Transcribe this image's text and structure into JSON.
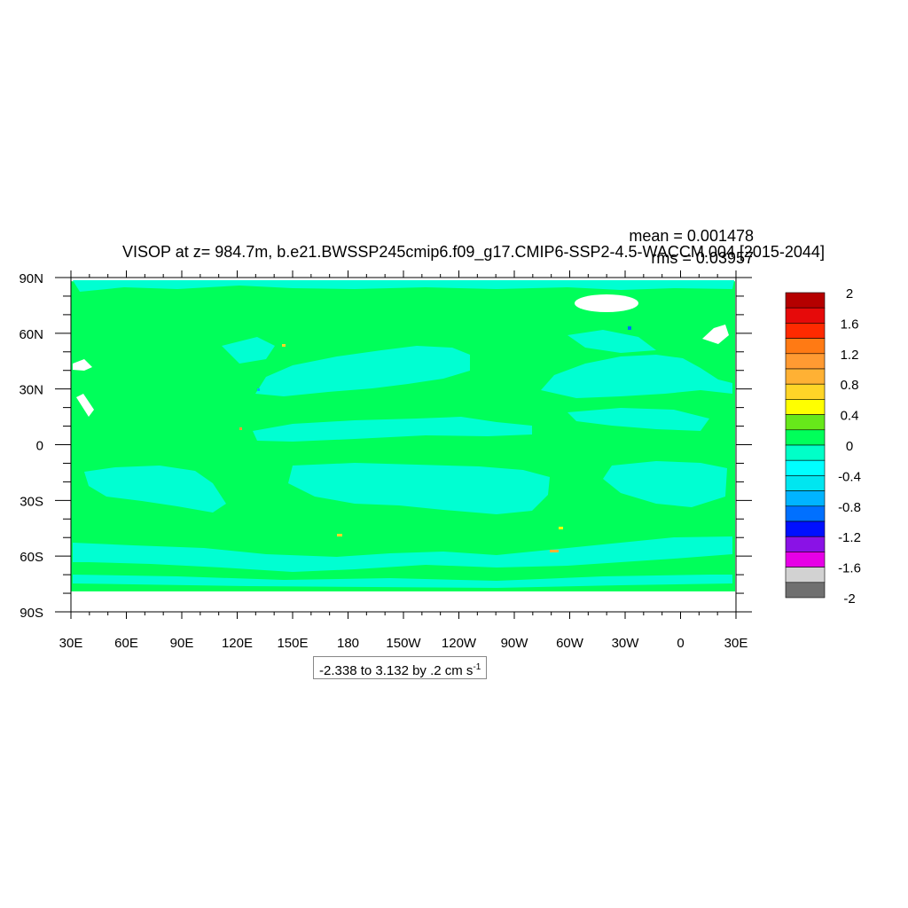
{
  "chart_data": {
    "type": "heatmap",
    "title": "VISOP at z= 984.7m, b.e21.BWSSP245cmip6.f09_g17.CMIP6-SSP2-4.5-WACCM.004 [2015-2044]",
    "stats": {
      "mean": "mean = 0.001478",
      "rms": "rms = 0.03957"
    },
    "range_label": "-2.338 to 3.132 by .2 cm s",
    "range_unit_exponent": "-1",
    "x_tick_labels": [
      "30E",
      "60E",
      "90E",
      "120E",
      "150E",
      "180",
      "150W",
      "120W",
      "90W",
      "60W",
      "30W",
      "0",
      "30E"
    ],
    "y_tick_labels": [
      "90N",
      "60N",
      "30N",
      "0",
      "30S",
      "60S",
      "90S"
    ],
    "xlim": [
      30,
      390
    ],
    "ylim": [
      -90,
      90
    ],
    "x_ticks": [
      30,
      60,
      90,
      120,
      150,
      180,
      210,
      240,
      270,
      300,
      330,
      360,
      390
    ],
    "y_ticks": [
      90,
      60,
      30,
      0,
      -30,
      -60,
      -90
    ],
    "data_extent": {
      "lat": [
        -79,
        88
      ]
    },
    "colorbar": {
      "labels": [
        "2",
        "1.6",
        "1.2",
        "0.8",
        "0.4",
        "0",
        "-0.4",
        "-0.8",
        "-1.2",
        "-1.6",
        "-2"
      ],
      "colors": [
        "#b50000",
        "#e60a0a",
        "#ff2a00",
        "#ff7a14",
        "#ff9a32",
        "#ffb134",
        "#ffd527",
        "#ffff00",
        "#67e81a",
        "#00ff5a",
        "#00ffc8",
        "#00ffff",
        "#00e6f0",
        "#00b4ff",
        "#0070ff",
        "#0010ff",
        "#8a12e6",
        "#e600e6",
        "#d2d2d2",
        "#707070"
      ]
    },
    "field_colors": {
      "zero": "#00ff5a",
      "negative_small": "#00ffd2",
      "missing": "#ffffff"
    }
  }
}
